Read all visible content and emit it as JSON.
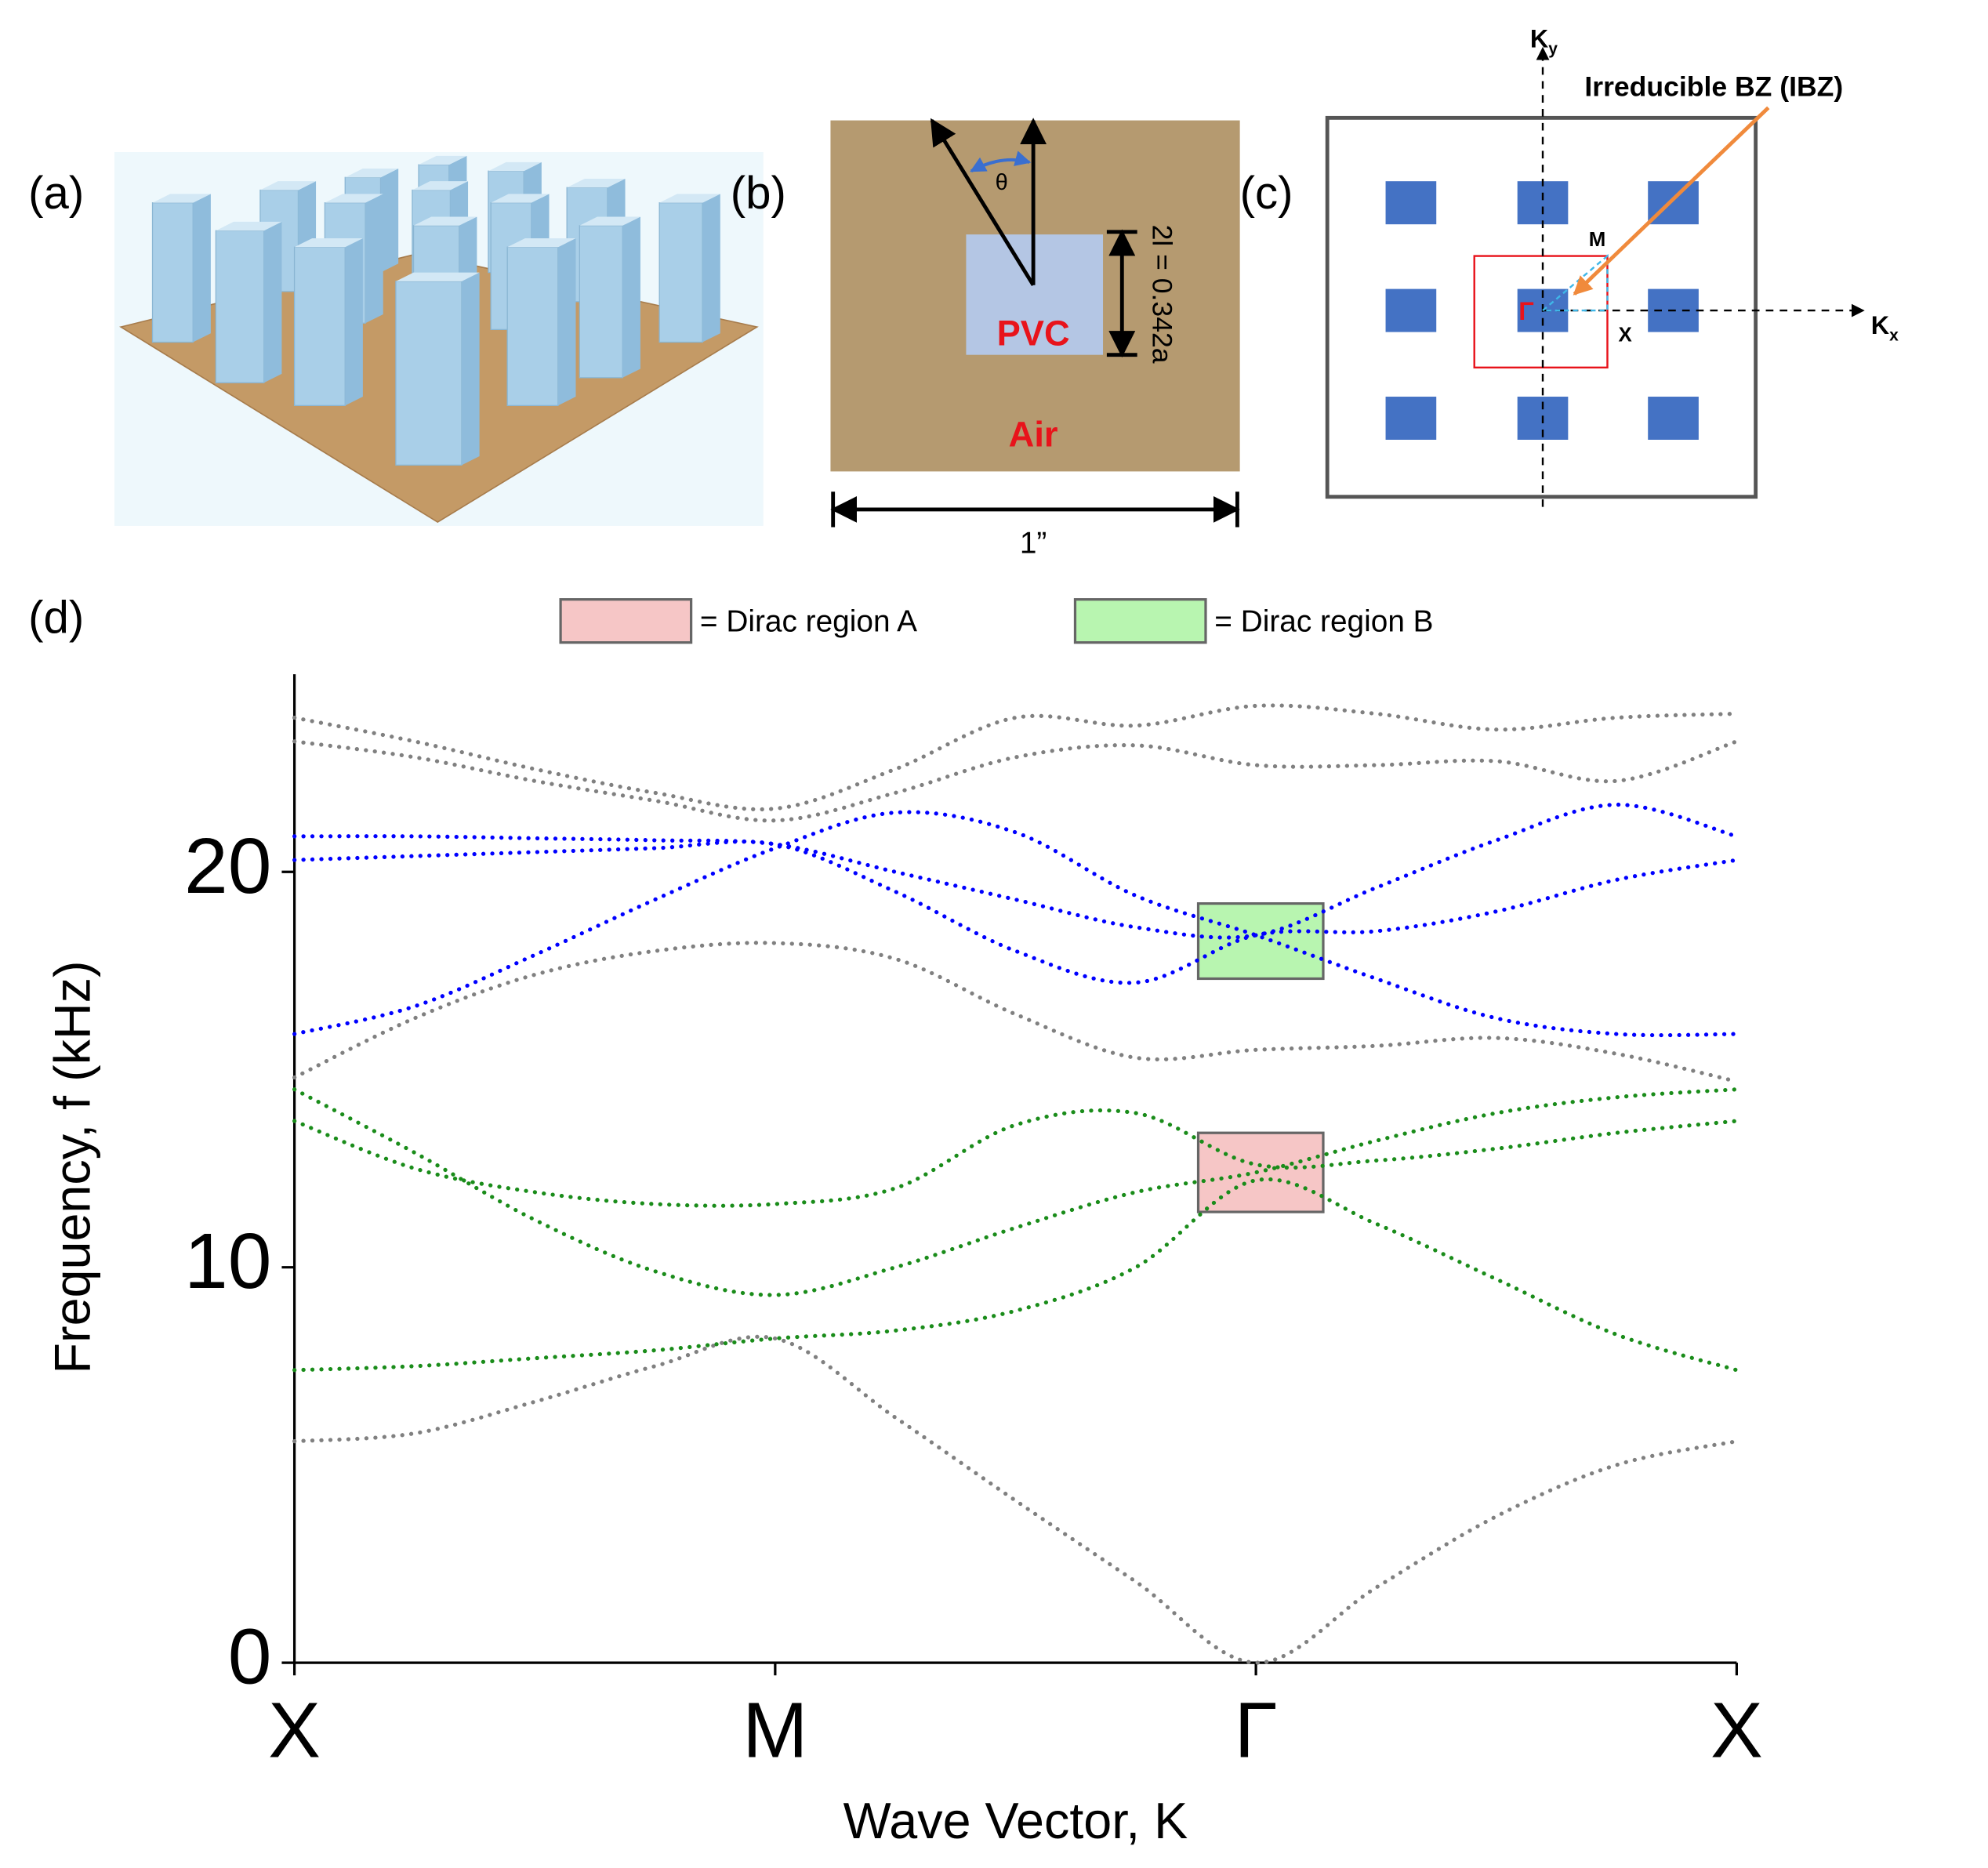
{
  "panels": {
    "a": {
      "label": "(a)"
    },
    "b": {
      "label": "(b)",
      "angle": "θ",
      "height": "2l = 0.342a",
      "inner": "PVC",
      "outer": "Air",
      "width": "1”"
    },
    "c": {
      "label": "(c)",
      "ky": {
        "base": "K",
        "sub": "y"
      },
      "kx": {
        "base": "K",
        "sub": "x"
      },
      "ibz": "Irreducible BZ (IBZ)",
      "m": "M",
      "x": "X",
      "gamma": "Γ"
    },
    "d": {
      "label": "(d)"
    }
  },
  "chart_data": {
    "type": "line",
    "x_label": "Wave Vector, K",
    "y_label": "Frequency, f (kHz)",
    "xlim": [
      0,
      3
    ],
    "ylim": [
      0,
      25
    ],
    "xticks": [
      {
        "value": 0,
        "label": "X"
      },
      {
        "value": 1,
        "label": "M"
      },
      {
        "value": 2,
        "label": "Γ"
      },
      {
        "value": 3,
        "label": "X"
      }
    ],
    "yticks": [
      0,
      10,
      20
    ],
    "line_style": "dotted",
    "x": [
      0,
      0.25,
      0.5,
      0.75,
      1,
      1.25,
      1.5,
      1.75,
      2,
      2.25,
      2.5,
      2.75,
      3
    ],
    "series": [
      {
        "color": "#808080",
        "values": [
          5.6,
          5.8,
          6.6,
          7.5,
          8.2,
          6.2,
          4.1,
          2.05,
          0,
          1.9,
          3.7,
          5.0,
          5.6
        ]
      },
      {
        "color": "#1a8c1a",
        "values": [
          7.4,
          7.5,
          7.7,
          7.9,
          8.2,
          8.4,
          8.9,
          10.0,
          12.2,
          11.1,
          9.7,
          8.3,
          7.4
        ]
      },
      {
        "color": "#1a8c1a",
        "values": [
          14.5,
          12.9,
          11.2,
          9.9,
          9.3,
          10.0,
          11.0,
          11.9,
          12.4,
          13.2,
          13.9,
          14.3,
          14.5
        ]
      },
      {
        "color": "#1a8c1a",
        "values": [
          13.7,
          12.5,
          11.9,
          11.6,
          11.6,
          12.0,
          13.6,
          13.9,
          12.6,
          12.7,
          13.0,
          13.4,
          13.7
        ]
      },
      {
        "color": "#808080",
        "values": [
          14.8,
          16.3,
          17.4,
          18.0,
          18.2,
          17.8,
          16.4,
          15.3,
          15.5,
          15.6,
          15.8,
          15.4,
          14.7
        ]
      },
      {
        "color": "#0000ff",
        "values": [
          15.9,
          16.6,
          17.9,
          19.3,
          20.6,
          21.5,
          21.0,
          19.4,
          18.4,
          17.3,
          16.3,
          15.9,
          15.9
        ]
      },
      {
        "color": "#0000ff",
        "values": [
          20.9,
          20.9,
          20.85,
          20.8,
          20.7,
          20.0,
          19.3,
          18.6,
          18.4,
          19.6,
          20.8,
          21.7,
          20.9
        ]
      },
      {
        "color": "#0000ff",
        "values": [
          20.3,
          20.4,
          20.5,
          20.6,
          20.7,
          19.5,
          18.0,
          17.2,
          18.4,
          18.5,
          19.0,
          19.8,
          20.3
        ]
      },
      {
        "color": "#808080",
        "values": [
          23.3,
          22.9,
          22.3,
          21.8,
          21.3,
          22.0,
          22.9,
          23.2,
          22.7,
          22.7,
          22.8,
          22.3,
          23.3
        ]
      },
      {
        "color": "#808080",
        "values": [
          23.9,
          23.3,
          22.6,
          22.0,
          21.6,
          22.6,
          23.9,
          23.7,
          24.2,
          24.0,
          23.6,
          23.9,
          24.0
        ]
      }
    ],
    "regions": [
      {
        "name": "= Dirac region A",
        "color": "#f6c6c6",
        "x": [
          1.88,
          2.14
        ],
        "y": [
          11.4,
          13.4
        ]
      },
      {
        "name": "= Dirac region B",
        "color": "#b8f5b0",
        "x": [
          1.88,
          2.14
        ],
        "y": [
          17.3,
          19.2
        ]
      }
    ]
  }
}
